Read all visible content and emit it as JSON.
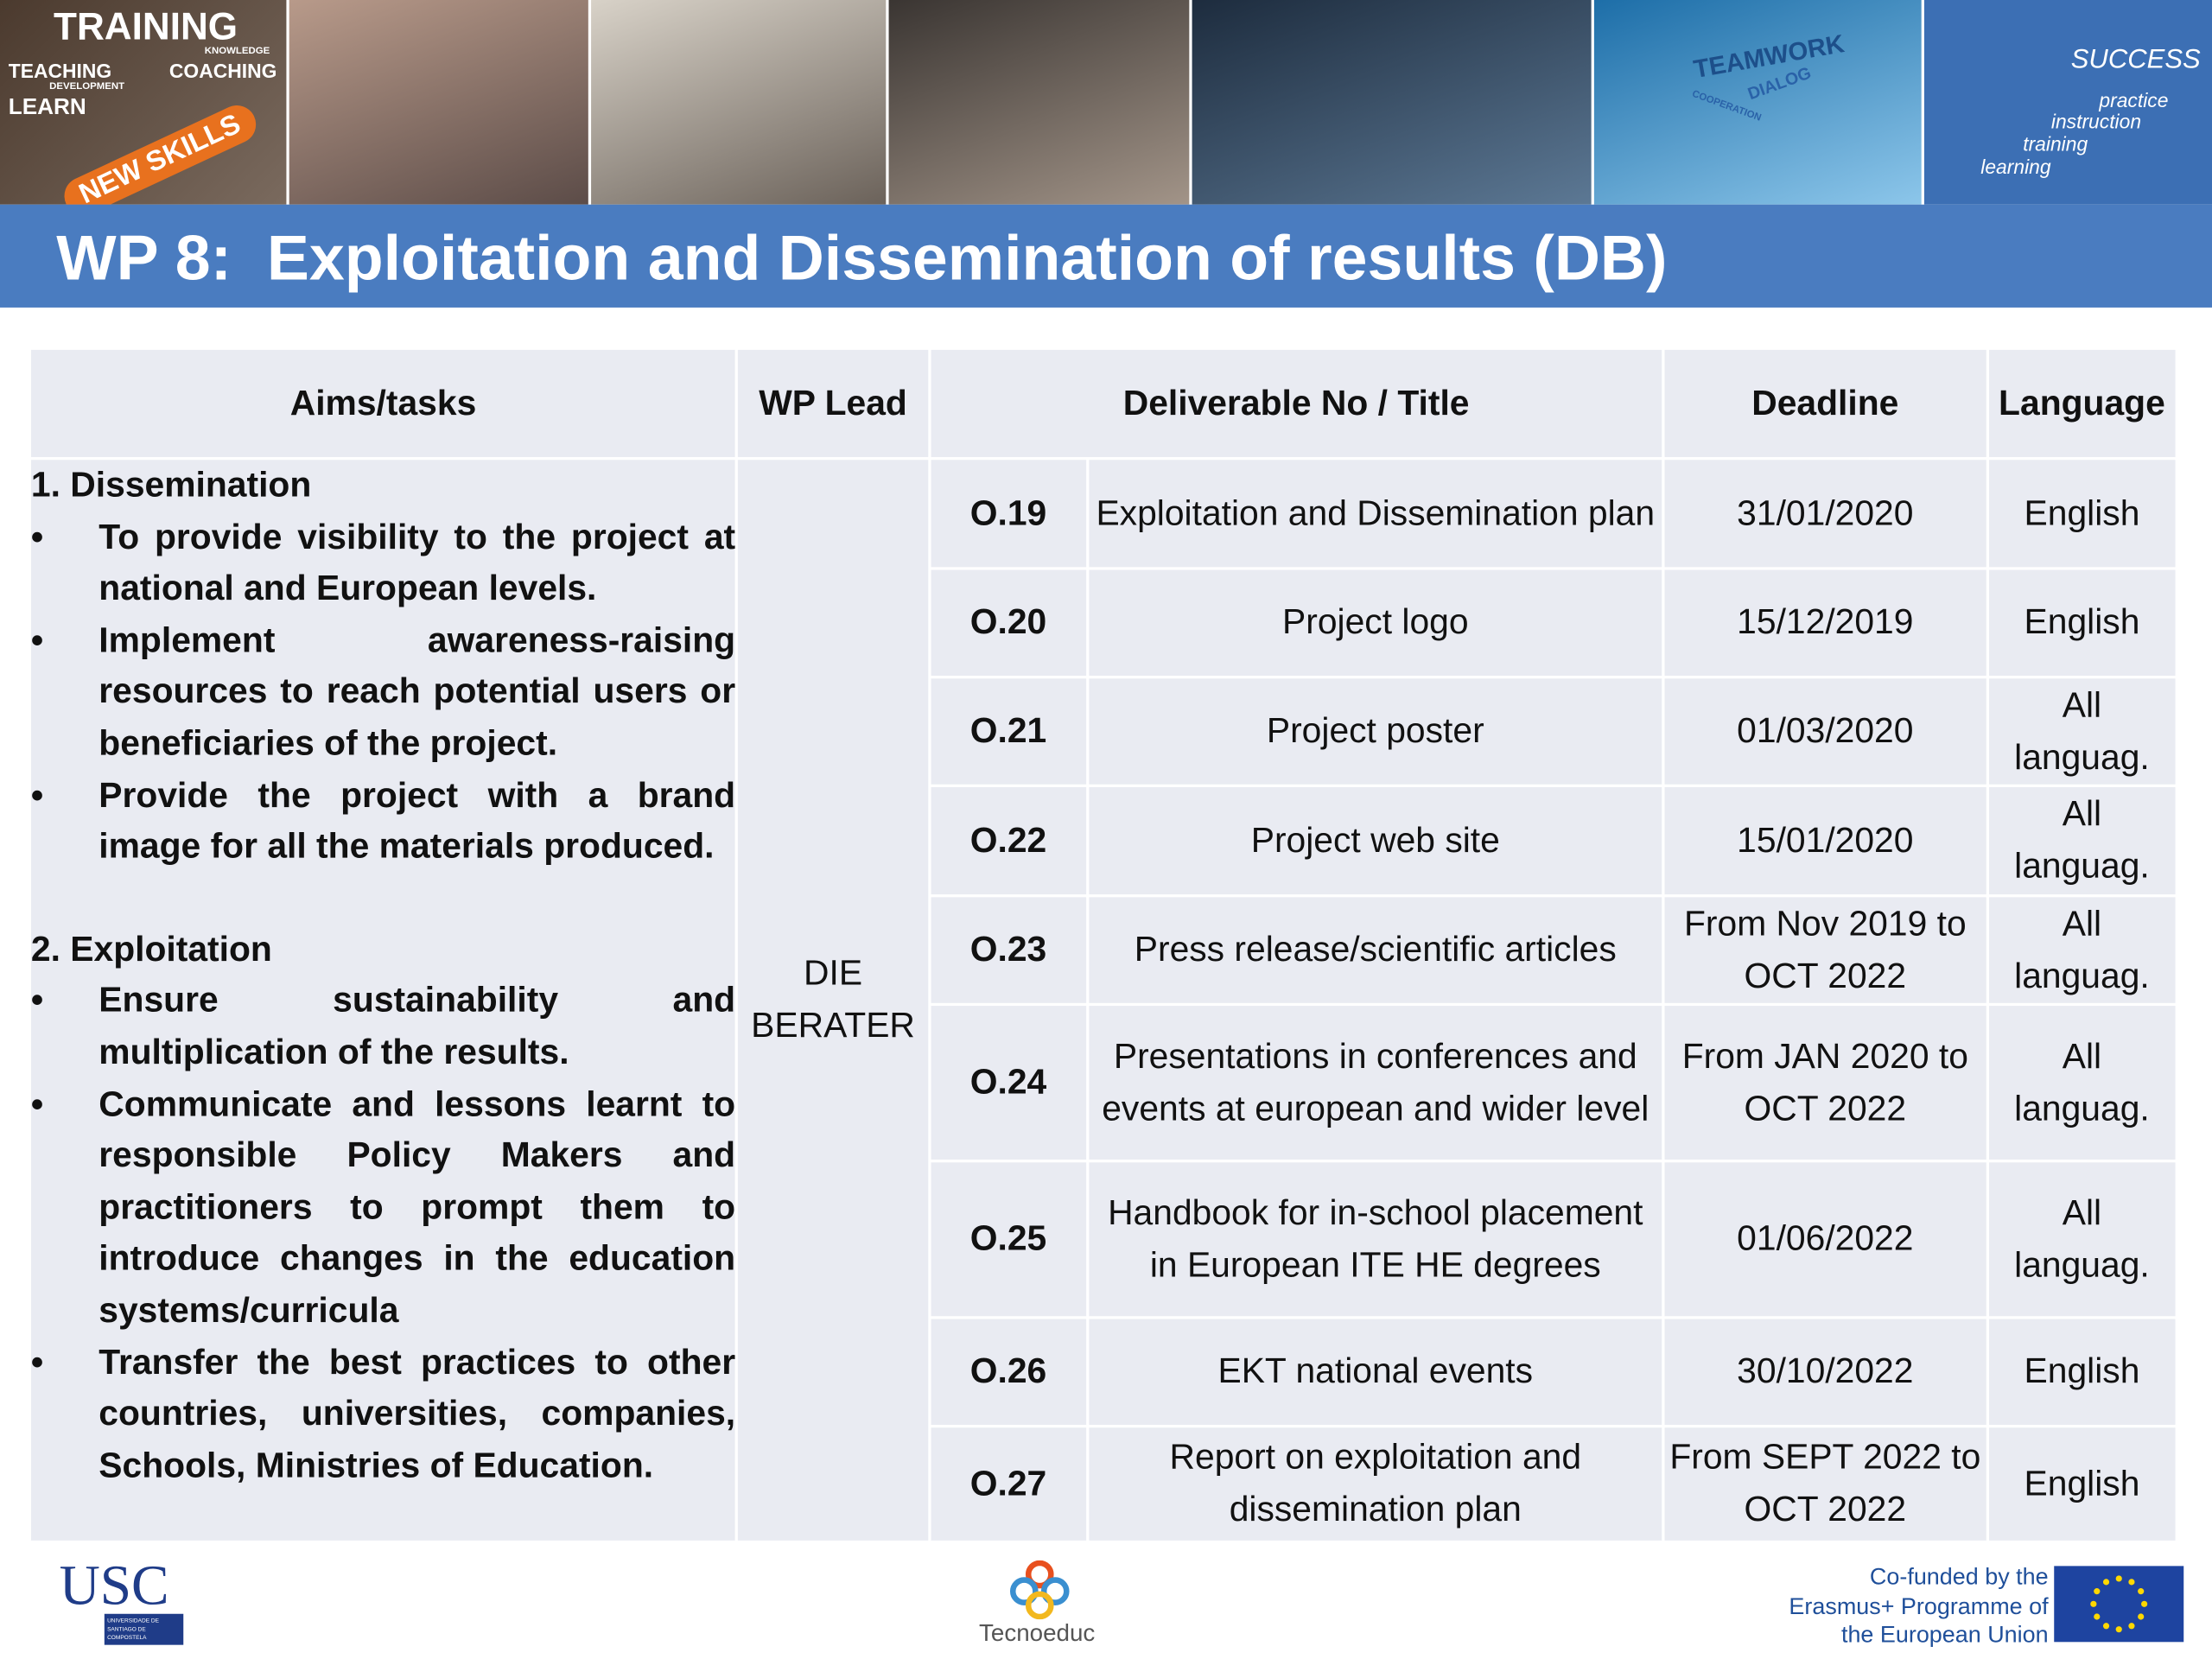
{
  "header": {
    "banner": [
      "TRAINING",
      "KNOWLEDGE",
      "TEACHING",
      "COACHING",
      "DEVELOPMENT",
      "LEARN",
      "NEW SKILLS",
      "TEAMWORK",
      "DIALOG",
      "COOPERATION",
      "SUCCESS",
      "practice",
      "instruction",
      "training",
      "learning"
    ],
    "title": "WP 8:  Exploitation and Dissemination of results (DB)"
  },
  "table": {
    "headers": [
      "Aims/tasks",
      "WP Lead",
      "Deliverable No / Title",
      "Deadline",
      "Language"
    ],
    "aims": [
      {
        "heading": "1. Dissemination",
        "bullets": [
          "To provide visibility to the project at national and European levels.",
          "Implement awareness-raising resources to reach potential users or beneficiaries of the project.",
          "Provide the project with a brand image for all the materials produced."
        ]
      },
      {
        "heading": "2. Exploitation",
        "bullets": [
          "Ensure sustainability and multiplication of the results.",
          "Communicate and lessons learnt to responsible Policy Makers and practitioners to prompt them to introduce changes in the education systems/curricula",
          "Transfer the best practices to other countries, universities, companies, Schools, Ministries of Education."
        ]
      }
    ],
    "wp_lead": "DIE BERATER",
    "rows": [
      [
        "O.19",
        "Exploitation and Dissemination plan",
        "31/01/2020",
        "English"
      ],
      [
        "O.20",
        "Project logo",
        "15/12/2019",
        "English"
      ],
      [
        "O.21",
        "Project poster",
        "01/03/2020",
        "All languag."
      ],
      [
        "O.22",
        "Project web site",
        "15/01/2020",
        "All languag."
      ],
      [
        "O.23",
        "Press release/scientific articles",
        "From Nov 2019 to OCT 2022",
        "All languag."
      ],
      [
        "O.24",
        "Presentations in conferences and events at european and wider level",
        "From JAN 2020 to OCT 2022",
        "All languag."
      ],
      [
        "O.25",
        "Handbook for in-school placement in European ITE HE degrees",
        "01/06/2022",
        "All languag."
      ],
      [
        "O.26",
        "EKT national events",
        "30/10/2022",
        "English"
      ],
      [
        "O.27",
        "Report on exploitation and dissemination plan",
        "From SEPT 2022 to OCT 2022",
        "English"
      ]
    ]
  },
  "footer": {
    "usc": "USC",
    "usc_sub": "UNIVERSIDADE DE SANTIAGO DE COMPOSTELA",
    "tecnoeduc": "Tecnoeduc",
    "cofunded": "Co-funded by the Erasmus+ Programme of the European Union"
  }
}
